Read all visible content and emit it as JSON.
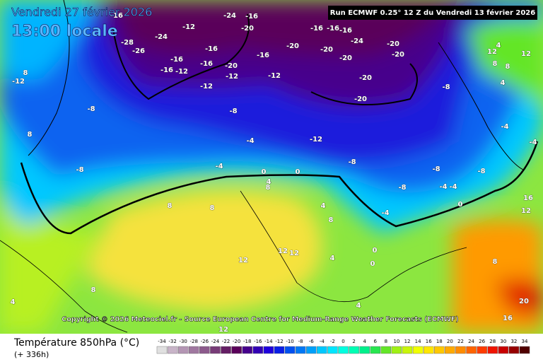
{
  "header": {
    "date": "Vendredi 27 février 2026",
    "time": "13:00 locale",
    "run": "Run ECMWF 0.25° 12 Z du Vendredi 13 février 2026"
  },
  "copyright": "Copyright © 2026 Meteociel.fr - Source European Centre for Medium-Range Weather Forecasts (ECMWF)",
  "legend": {
    "title": "Température 850hPa (°C)",
    "lead": "(+ 336h)",
    "values": [
      -34,
      -32,
      -30,
      -28,
      -26,
      -24,
      -22,
      -20,
      -18,
      -16,
      -14,
      -12,
      -10,
      -8,
      -6,
      -4,
      -2,
      0,
      2,
      4,
      6,
      8,
      10,
      12,
      14,
      16,
      18,
      20,
      22,
      24,
      26,
      28,
      30,
      32,
      34
    ],
    "colors": [
      "#e0e0e0",
      "#c8b4c8",
      "#b496b4",
      "#a078a0",
      "#8c5a8c",
      "#783c78",
      "#641e64",
      "#5a005a",
      "#46008c",
      "#3200b4",
      "#1e00dc",
      "#0a1ee6",
      "#0050f0",
      "#0078f5",
      "#00a0fa",
      "#00c8ff",
      "#00e6ff",
      "#00ffe0",
      "#00ffb4",
      "#00f08c",
      "#28e650",
      "#64e628",
      "#a0f014",
      "#c8f50a",
      "#f0ff00",
      "#ffe600",
      "#ffc800",
      "#ffaa00",
      "#ff8c00",
      "#ff6400",
      "#ff3c00",
      "#f01400",
      "#c80000",
      "#960000",
      "#500000"
    ]
  },
  "map": {
    "contour_labels": [
      -12,
      -16,
      -20,
      -24,
      -16,
      -28,
      -26,
      -24,
      -16,
      -16,
      -12,
      -16,
      -16,
      -20,
      -12,
      -16,
      -12,
      -12,
      -20,
      -16,
      -16,
      -16,
      -20,
      -20,
      -24,
      -20,
      -20,
      -20,
      -20,
      -8,
      -8,
      -8,
      -4,
      -12,
      -8,
      -8,
      -4,
      0,
      0,
      -8,
      -8,
      -8,
      -4,
      -4,
      -4,
      0,
      -4,
      4,
      8,
      8,
      12,
      12,
      12,
      8,
      4,
      20,
      16,
      16,
      12,
      12,
      12,
      4,
      8,
      8,
      4,
      8,
      12,
      -12,
      8,
      8,
      -4,
      0,
      0,
      4,
      4,
      8,
      4,
      8
    ]
  }
}
